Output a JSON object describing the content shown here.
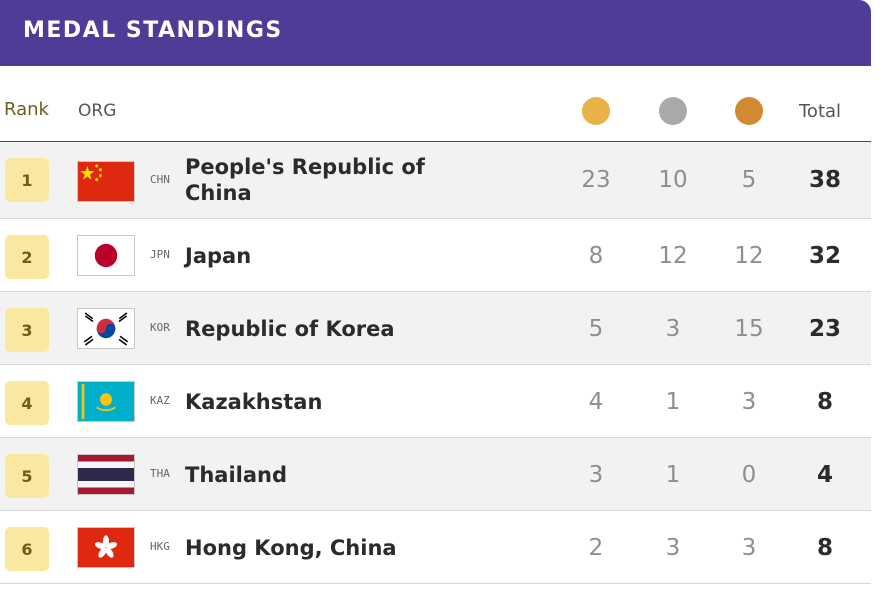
{
  "header": {
    "title": "MEDAL STANDINGS"
  },
  "columns": {
    "rank": "Rank",
    "org": "ORG",
    "total": "Total"
  },
  "medal_colors": {
    "gold": "#e9b248",
    "silver": "#a9a9a9",
    "bronze": "#d08a32"
  },
  "rows": [
    {
      "rank": "1",
      "code": "CHN",
      "country": "People's Republic of China",
      "gold": "23",
      "silver": "10",
      "bronze": "5",
      "total": "38",
      "flag": "china-flag-icon"
    },
    {
      "rank": "2",
      "code": "JPN",
      "country": "Japan",
      "gold": "8",
      "silver": "12",
      "bronze": "12",
      "total": "32",
      "flag": "japan-flag-icon"
    },
    {
      "rank": "3",
      "code": "KOR",
      "country": "Republic of Korea",
      "gold": "5",
      "silver": "3",
      "bronze": "15",
      "total": "23",
      "flag": "korea-flag-icon"
    },
    {
      "rank": "4",
      "code": "KAZ",
      "country": "Kazakhstan",
      "gold": "4",
      "silver": "1",
      "bronze": "3",
      "total": "8",
      "flag": "kazakhstan-flag-icon"
    },
    {
      "rank": "5",
      "code": "THA",
      "country": "Thailand",
      "gold": "3",
      "silver": "1",
      "bronze": "0",
      "total": "4",
      "flag": "thailand-flag-icon"
    },
    {
      "rank": "6",
      "code": "HKG",
      "country": "Hong Kong, China",
      "gold": "2",
      "silver": "3",
      "bronze": "3",
      "total": "8",
      "flag": "hong-kong-flag-icon"
    }
  ]
}
